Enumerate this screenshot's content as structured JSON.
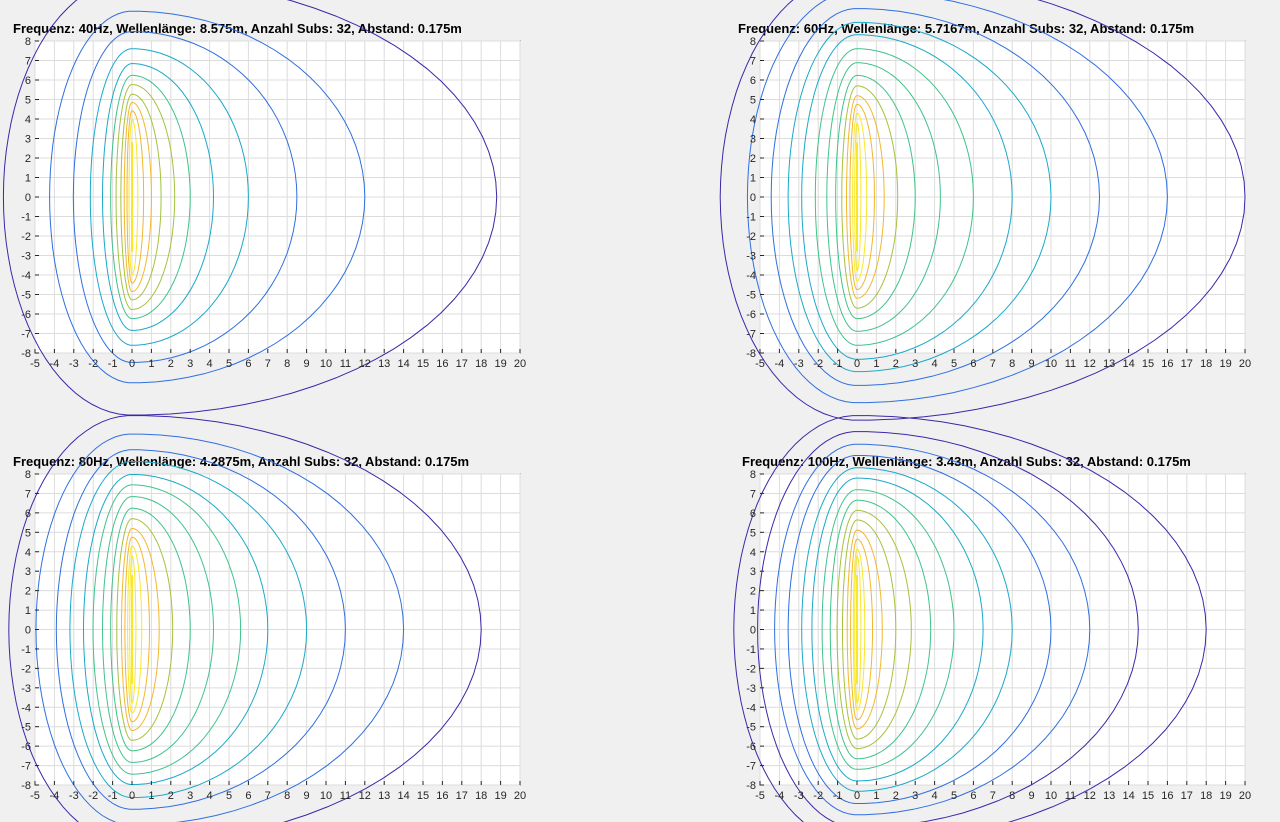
{
  "figure": {
    "background": "#f0f0f0",
    "colormap": [
      "#3e26a8",
      "#2f6fe0",
      "#1aa9c9",
      "#3fc38a",
      "#a6c23c",
      "#f3b72e",
      "#f9e829"
    ]
  },
  "chart_data": [
    {
      "type": "contour",
      "title": "Frequenz: 40Hz,  Wellenlänge: 8.575m,  Anzahl Subs: 32,  Abstand: 0.175m",
      "frequency_hz": 40,
      "wavelength_m": 8.575,
      "subs": 32,
      "spacing_m": 0.175,
      "xlim": [
        -5,
        20
      ],
      "ylim": [
        -8,
        8
      ],
      "xticks": [
        -5,
        -4,
        -3,
        -2,
        -1,
        0,
        1,
        2,
        3,
        4,
        5,
        6,
        7,
        8,
        9,
        10,
        11,
        12,
        13,
        14,
        15,
        16,
        17,
        18,
        19,
        20
      ],
      "yticks": [
        8,
        7,
        6,
        5,
        4,
        3,
        2,
        1,
        0,
        -1,
        -2,
        -3,
        -4,
        -5,
        -6,
        -7,
        -8
      ],
      "array": {
        "x": 0,
        "y_from": -2.8,
        "y_to": 2.8
      },
      "grid": true,
      "contour_x_extents": [
        0.3,
        0.6,
        1.0,
        1.5,
        2.2,
        3.0,
        4.2,
        6.0,
        8.5,
        12.0,
        18.8
      ]
    },
    {
      "type": "contour",
      "title": "Frequenz: 60Hz,  Wellenlänge: 5.7167m,  Anzahl Subs: 32,  Abstand: 0.175m",
      "frequency_hz": 60,
      "wavelength_m": 5.7167,
      "subs": 32,
      "spacing_m": 0.175,
      "xlim": [
        -5,
        20
      ],
      "ylim": [
        -8,
        8
      ],
      "xticks": [
        -5,
        -4,
        -3,
        -2,
        -1,
        0,
        1,
        2,
        3,
        4,
        5,
        6,
        7,
        8,
        9,
        10,
        11,
        12,
        13,
        14,
        15,
        16,
        17,
        18,
        19,
        20
      ],
      "yticks": [
        8,
        7,
        6,
        5,
        4,
        3,
        2,
        1,
        0,
        -1,
        -2,
        -3,
        -4,
        -5,
        -6,
        -7,
        -8
      ],
      "array": {
        "x": 0,
        "y_from": -2.8,
        "y_to": 2.8
      },
      "grid": true,
      "contour_x_extents": [
        0.2,
        0.5,
        0.9,
        1.4,
        2.1,
        3.0,
        4.3,
        6.0,
        8.0,
        10.0,
        12.5,
        16.0,
        20.0
      ]
    },
    {
      "type": "contour",
      "title": "Frequenz: 80Hz,  Wellenlänge: 4.2875m,  Anzahl Subs: 32,  Abstand: 0.175m",
      "frequency_hz": 80,
      "wavelength_m": 4.2875,
      "subs": 32,
      "spacing_m": 0.175,
      "xlim": [
        -5,
        20
      ],
      "ylim": [
        -8,
        8
      ],
      "xticks": [
        -5,
        -4,
        -3,
        -2,
        -1,
        0,
        1,
        2,
        3,
        4,
        5,
        6,
        7,
        8,
        9,
        10,
        11,
        12,
        13,
        14,
        15,
        16,
        17,
        18,
        19,
        20
      ],
      "yticks": [
        8,
        7,
        6,
        5,
        4,
        3,
        2,
        1,
        0,
        -1,
        -2,
        -3,
        -4,
        -5,
        -6,
        -7,
        -8
      ],
      "array": {
        "x": 0,
        "y_from": -2.8,
        "y_to": 2.8
      },
      "grid": true,
      "contour_x_extents": [
        0.2,
        0.5,
        0.9,
        1.4,
        2.1,
        3.0,
        4.2,
        5.6,
        7.0,
        9.0,
        11.0,
        14.0,
        18.0
      ]
    },
    {
      "type": "contour",
      "title": "Frequenz: 100Hz,  Wellenlänge: 3.43m,  Anzahl Subs: 32,  Abstand: 0.175m",
      "frequency_hz": 100,
      "wavelength_m": 3.43,
      "subs": 32,
      "spacing_m": 0.175,
      "xlim": [
        -5,
        20
      ],
      "ylim": [
        -8,
        8
      ],
      "xticks": [
        -5,
        -4,
        -3,
        -2,
        -1,
        0,
        1,
        2,
        3,
        4,
        5,
        6,
        7,
        8,
        9,
        10,
        11,
        12,
        13,
        14,
        15,
        16,
        17,
        18,
        19,
        20
      ],
      "yticks": [
        8,
        7,
        6,
        5,
        4,
        3,
        2,
        1,
        0,
        -1,
        -2,
        -3,
        -4,
        -5,
        -6,
        -7,
        -8
      ],
      "array": {
        "x": 0,
        "y_from": -2.8,
        "y_to": 2.8
      },
      "grid": true,
      "contour_x_extents": [
        0.2,
        0.4,
        0.8,
        1.3,
        2.0,
        2.8,
        3.8,
        5.0,
        6.5,
        8.0,
        10.0,
        12.0,
        14.5,
        18.0
      ]
    }
  ]
}
